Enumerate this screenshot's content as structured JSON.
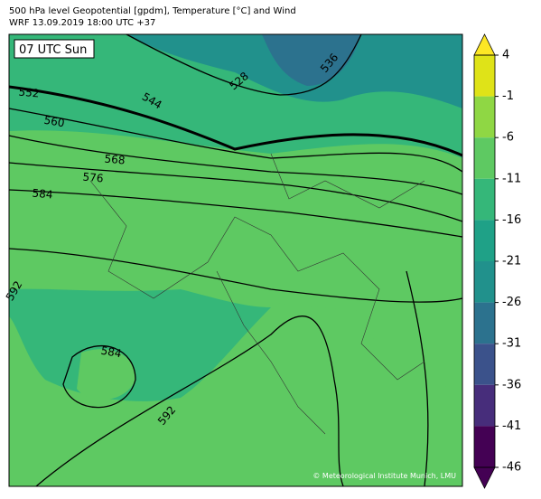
{
  "header": {
    "title_line1": "500 hPa level Geopotential [gpdm], Temperature [°C] and Wind",
    "title_line2": "WRF 13.09.2019 18:00 UTC +37"
  },
  "map": {
    "time_label": "07 UTC Sun",
    "contour_labels": [
      "552",
      "544",
      "560",
      "528",
      "536",
      "568",
      "576",
      "584",
      "592",
      "584",
      "592"
    ],
    "credit": "© Meteorological Institute Munich, LMU"
  },
  "colorbar": {
    "ticks": [
      4,
      -1,
      -6,
      -11,
      -16,
      -21,
      -26,
      -31,
      -36,
      -41,
      -46
    ],
    "colors": [
      "#dfe318",
      "#8fd744",
      "#5ec962",
      "#35b779",
      "#1fa187",
      "#21918c",
      "#2c728e",
      "#3b528b",
      "#472d7b",
      "#440154"
    ],
    "extend_colors": [
      "#fde725",
      "#440154"
    ]
  }
}
